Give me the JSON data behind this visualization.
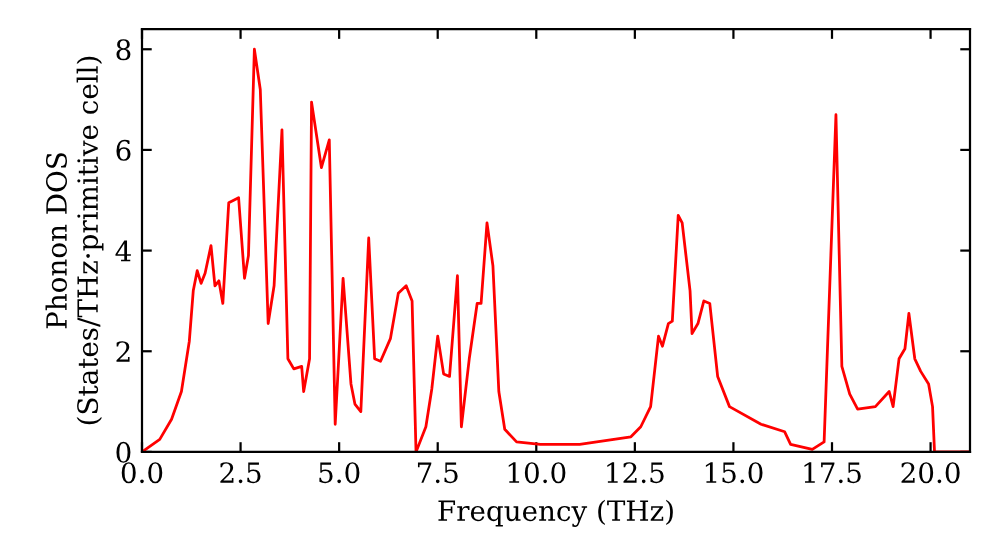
{
  "chart_data": {
    "type": "line",
    "xlabel": "Frequency (THz)",
    "ylabel": "Phonon DOS\n(States/THz·primitive cell)",
    "xlim": [
      0,
      21
    ],
    "ylim": [
      0,
      8.4
    ],
    "xticks": [
      {
        "value": 0,
        "label": "0.0"
      },
      {
        "value": 2.5,
        "label": "2.5"
      },
      {
        "value": 5,
        "label": "5.0"
      },
      {
        "value": 7.5,
        "label": "7.5"
      },
      {
        "value": 10,
        "label": "10.0"
      },
      {
        "value": 12.5,
        "label": "12.5"
      },
      {
        "value": 15,
        "label": "15.0"
      },
      {
        "value": 17.5,
        "label": "17.5"
      },
      {
        "value": 20,
        "label": "20.0"
      }
    ],
    "yticks": [
      0,
      2,
      4,
      6,
      8
    ],
    "grid": false,
    "legend": false,
    "marker": "none",
    "line_style": "solid",
    "series": [
      {
        "color": "#ff0000",
        "x": [
          0,
          0.45,
          0.75,
          1.0,
          1.2,
          1.3,
          1.4,
          1.5,
          1.6,
          1.75,
          1.85,
          1.95,
          2.05,
          2.2,
          2.45,
          2.6,
          2.7,
          2.85,
          3.0,
          3.2,
          3.35,
          3.55,
          3.7,
          3.85,
          4.05,
          4.1,
          4.25,
          4.3,
          4.55,
          4.75,
          4.9,
          5.1,
          5.3,
          5.4,
          5.55,
          5.75,
          5.9,
          6.05,
          6.3,
          6.5,
          6.7,
          6.85,
          6.95,
          7.2,
          7.35,
          7.5,
          7.65,
          7.8,
          8.0,
          8.1,
          8.3,
          8.5,
          8.6,
          8.75,
          8.9,
          9.05,
          9.2,
          9.5,
          10.1,
          11.1,
          12.4,
          12.65,
          12.9,
          13.1,
          13.2,
          13.35,
          13.45,
          13.6,
          13.7,
          13.9,
          13.95,
          14.1,
          14.25,
          14.4,
          14.6,
          14.9,
          15.7,
          16.3,
          16.45,
          17.0,
          17.3,
          17.6,
          17.75,
          17.95,
          18.15,
          18.6,
          18.95,
          19.05,
          19.2,
          19.35,
          19.45,
          19.6,
          19.75,
          19.95,
          20.05,
          20.1,
          21
        ],
        "values": [
          0,
          0.25,
          0.65,
          1.2,
          2.2,
          3.2,
          3.6,
          3.35,
          3.55,
          4.1,
          3.3,
          3.4,
          2.95,
          4.95,
          5.05,
          3.45,
          3.9,
          8.0,
          7.2,
          2.55,
          3.3,
          6.4,
          1.85,
          1.65,
          1.7,
          1.2,
          1.85,
          6.95,
          5.65,
          6.2,
          0.55,
          3.45,
          1.35,
          0.95,
          0.8,
          4.25,
          1.85,
          1.8,
          2.25,
          3.15,
          3.3,
          3.0,
          0.0,
          0.5,
          1.25,
          2.3,
          1.55,
          1.5,
          3.5,
          0.5,
          1.85,
          2.95,
          2.95,
          4.55,
          3.7,
          1.2,
          0.45,
          0.2,
          0.15,
          0.15,
          0.3,
          0.5,
          0.9,
          2.3,
          2.1,
          2.55,
          2.6,
          4.7,
          4.55,
          3.2,
          2.35,
          2.55,
          3.0,
          2.95,
          1.5,
          0.9,
          0.55,
          0.4,
          0.15,
          0.05,
          0.2,
          6.7,
          1.7,
          1.15,
          0.85,
          0.9,
          1.2,
          0.9,
          1.85,
          2.05,
          2.75,
          1.85,
          1.6,
          1.35,
          0.9,
          0.0,
          0
        ]
      }
    ]
  }
}
